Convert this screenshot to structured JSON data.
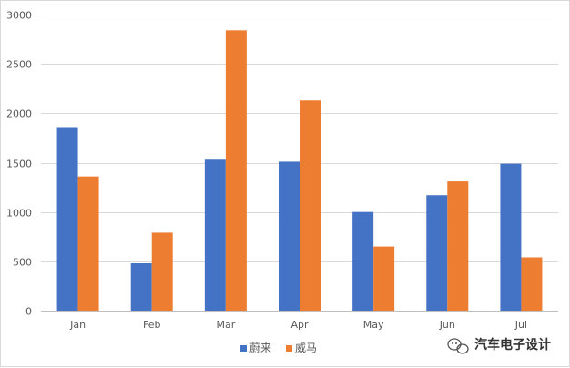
{
  "chart_data": {
    "type": "bar",
    "title": "",
    "xlabel": "",
    "ylabel": "",
    "categories": [
      "Jan",
      "Feb",
      "Mar",
      "Apr",
      "May",
      "Jun",
      "Jul"
    ],
    "series": [
      {
        "name": "蔚来",
        "color": "#4472c4",
        "values": [
          1860,
          480,
          1530,
          1510,
          1000,
          1170,
          1490
        ]
      },
      {
        "name": "威马",
        "color": "#ed7d31",
        "values": [
          1360,
          790,
          2840,
          2130,
          650,
          1310,
          540
        ]
      }
    ],
    "ylim": [
      0,
      3000
    ],
    "yticks": [
      0,
      500,
      1000,
      1500,
      2000,
      2500,
      3000
    ],
    "grid": true,
    "legend_position": "bottom"
  },
  "watermark": {
    "text": "汽车电子设计",
    "icon": "wechat-icon"
  }
}
